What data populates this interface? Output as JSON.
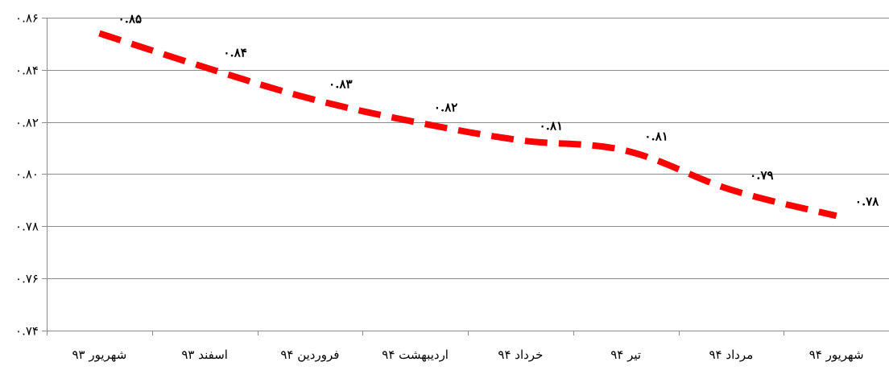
{
  "chart_data": {
    "type": "line",
    "title": "",
    "xlabel": "",
    "ylabel": "",
    "categories": [
      "شهریور ۹۳",
      "اسفند ۹۳",
      "فروردین ۹۴",
      "اردیبهشت ۹۴",
      "خرداد ۹۴",
      "تیر ۹۴",
      "مرداد ۹۴",
      "شهریور ۹۴"
    ],
    "series": [
      {
        "values": [
          0.854,
          0.841,
          0.829,
          0.82,
          0.813,
          0.809,
          0.794,
          0.784
        ],
        "data_labels": [
          "۰.۸۵",
          "۰.۸۴",
          "۰.۸۳",
          "۰.۸۲",
          "۰.۸۱",
          "۰.۸۱",
          "۰.۷۹",
          "۰.۷۸"
        ],
        "color": "#ff0000",
        "line_style": "dashed"
      }
    ],
    "ylim": [
      0.74,
      0.86
    ],
    "y_ticks": [
      0.86,
      0.84,
      0.82,
      0.8,
      0.78,
      0.76,
      0.74
    ],
    "y_tick_labels": [
      "۰.۸۶",
      "۰.۸۴",
      "۰.۸۲",
      "۰.۸۰",
      "۰.۷۸",
      "۰.۷۶",
      "۰.۷۴"
    ],
    "grid": "horizontal",
    "legend": "none",
    "axis_color": "#8c8c8c"
  }
}
